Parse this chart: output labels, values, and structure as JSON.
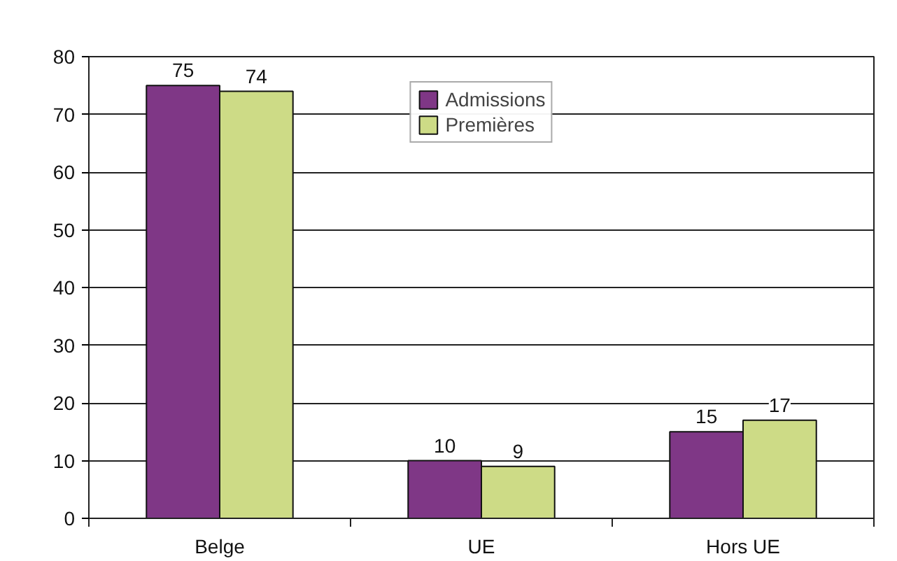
{
  "chart_data": {
    "type": "bar",
    "categories": [
      "Belge",
      "UE",
      "Hors UE"
    ],
    "series": [
      {
        "name": "Admissions",
        "color": "#7f3786",
        "values": [
          75,
          10,
          15
        ]
      },
      {
        "name": "Premières",
        "color": "#cddb86",
        "values": [
          74,
          9,
          17
        ]
      }
    ],
    "ylim": [
      0,
      80
    ],
    "yticks": [
      0,
      10,
      20,
      30,
      40,
      50,
      60,
      70,
      80
    ],
    "grid": "y",
    "legend": "top",
    "data_labels": true
  }
}
